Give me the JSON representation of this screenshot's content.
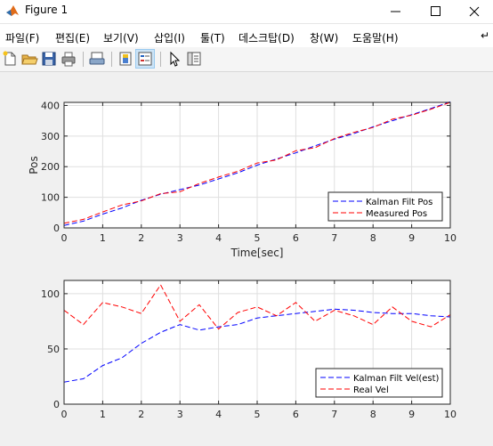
{
  "window": {
    "title": "Figure 1"
  },
  "menu": [
    {
      "label": "파일(F)"
    },
    {
      "label": "편집(E)"
    },
    {
      "label": "보기(V)"
    },
    {
      "label": "삽입(I)"
    },
    {
      "label": "툴(T)"
    },
    {
      "label": "데스크탑(D)"
    },
    {
      "label": "창(W)"
    },
    {
      "label": "도움말(H)"
    }
  ],
  "menu_overflow": "↵",
  "toolbar": {
    "icons": [
      "new-figure-icon",
      "open-file-icon",
      "save-icon",
      "print-icon",
      "print-preview-icon",
      "colorbar-icon",
      "legend-icon",
      "pointer-icon",
      "property-editor-icon"
    ],
    "active": "legend-icon"
  },
  "colors": {
    "kalman": "#0000ff",
    "measured": "#ff0000",
    "grid": "#dfdfdf",
    "axes_bg": "#ffffff",
    "figure_bg": "#f0f0f0"
  },
  "chart_data": [
    {
      "type": "line",
      "xlabel": "Time[sec]",
      "ylabel": "Pos",
      "xlim": [
        0,
        10
      ],
      "ylim": [
        0,
        410
      ],
      "xticks": [
        0,
        1,
        2,
        3,
        4,
        5,
        6,
        7,
        8,
        9,
        10
      ],
      "yticks": [
        0,
        100,
        200,
        300,
        400
      ],
      "grid": true,
      "legend_position": "bottom-right",
      "x": [
        0,
        0.5,
        1,
        1.5,
        2,
        2.5,
        3,
        3.5,
        4,
        4.5,
        5,
        5.5,
        6,
        6.5,
        7,
        7.5,
        8,
        8.5,
        9,
        9.5,
        10
      ],
      "series": [
        {
          "name": "Kalman Filt Pos",
          "style": "dashed",
          "color": "#0000ff",
          "values": [
            8,
            22,
            45,
            65,
            90,
            110,
            125,
            140,
            160,
            180,
            205,
            225,
            245,
            268,
            290,
            308,
            330,
            350,
            370,
            390,
            412
          ]
        },
        {
          "name": "Measured Pos",
          "style": "dashed",
          "color": "#ff0000",
          "values": [
            15,
            28,
            52,
            75,
            88,
            112,
            118,
            145,
            166,
            185,
            212,
            222,
            252,
            262,
            292,
            312,
            328,
            355,
            368,
            388,
            410
          ]
        }
      ]
    },
    {
      "type": "line",
      "xlabel": "",
      "ylabel": "",
      "xlim": [
        0,
        10
      ],
      "ylim": [
        0,
        112
      ],
      "xticks": [
        0,
        1,
        2,
        3,
        4,
        5,
        6,
        7,
        8,
        9,
        10
      ],
      "yticks": [
        0,
        50,
        100
      ],
      "grid": true,
      "legend_position": "bottom-right",
      "x": [
        0,
        0.5,
        1,
        1.5,
        2,
        2.5,
        3,
        3.5,
        4,
        4.5,
        5,
        5.5,
        6,
        6.5,
        7,
        7.5,
        8,
        8.5,
        9,
        9.5,
        10
      ],
      "series": [
        {
          "name": "Kalman Filt Vel(est)",
          "style": "dashed",
          "color": "#0000ff",
          "values": [
            20,
            23,
            35,
            42,
            55,
            65,
            72,
            67,
            70,
            72,
            78,
            80,
            82,
            84,
            86,
            85,
            83,
            82,
            82,
            80,
            79
          ]
        },
        {
          "name": "Real Vel",
          "style": "dashed",
          "color": "#ff0000",
          "values": [
            85,
            72,
            92,
            88,
            82,
            108,
            75,
            90,
            68,
            83,
            88,
            80,
            92,
            75,
            85,
            80,
            72,
            88,
            75,
            70,
            81
          ]
        }
      ]
    }
  ]
}
